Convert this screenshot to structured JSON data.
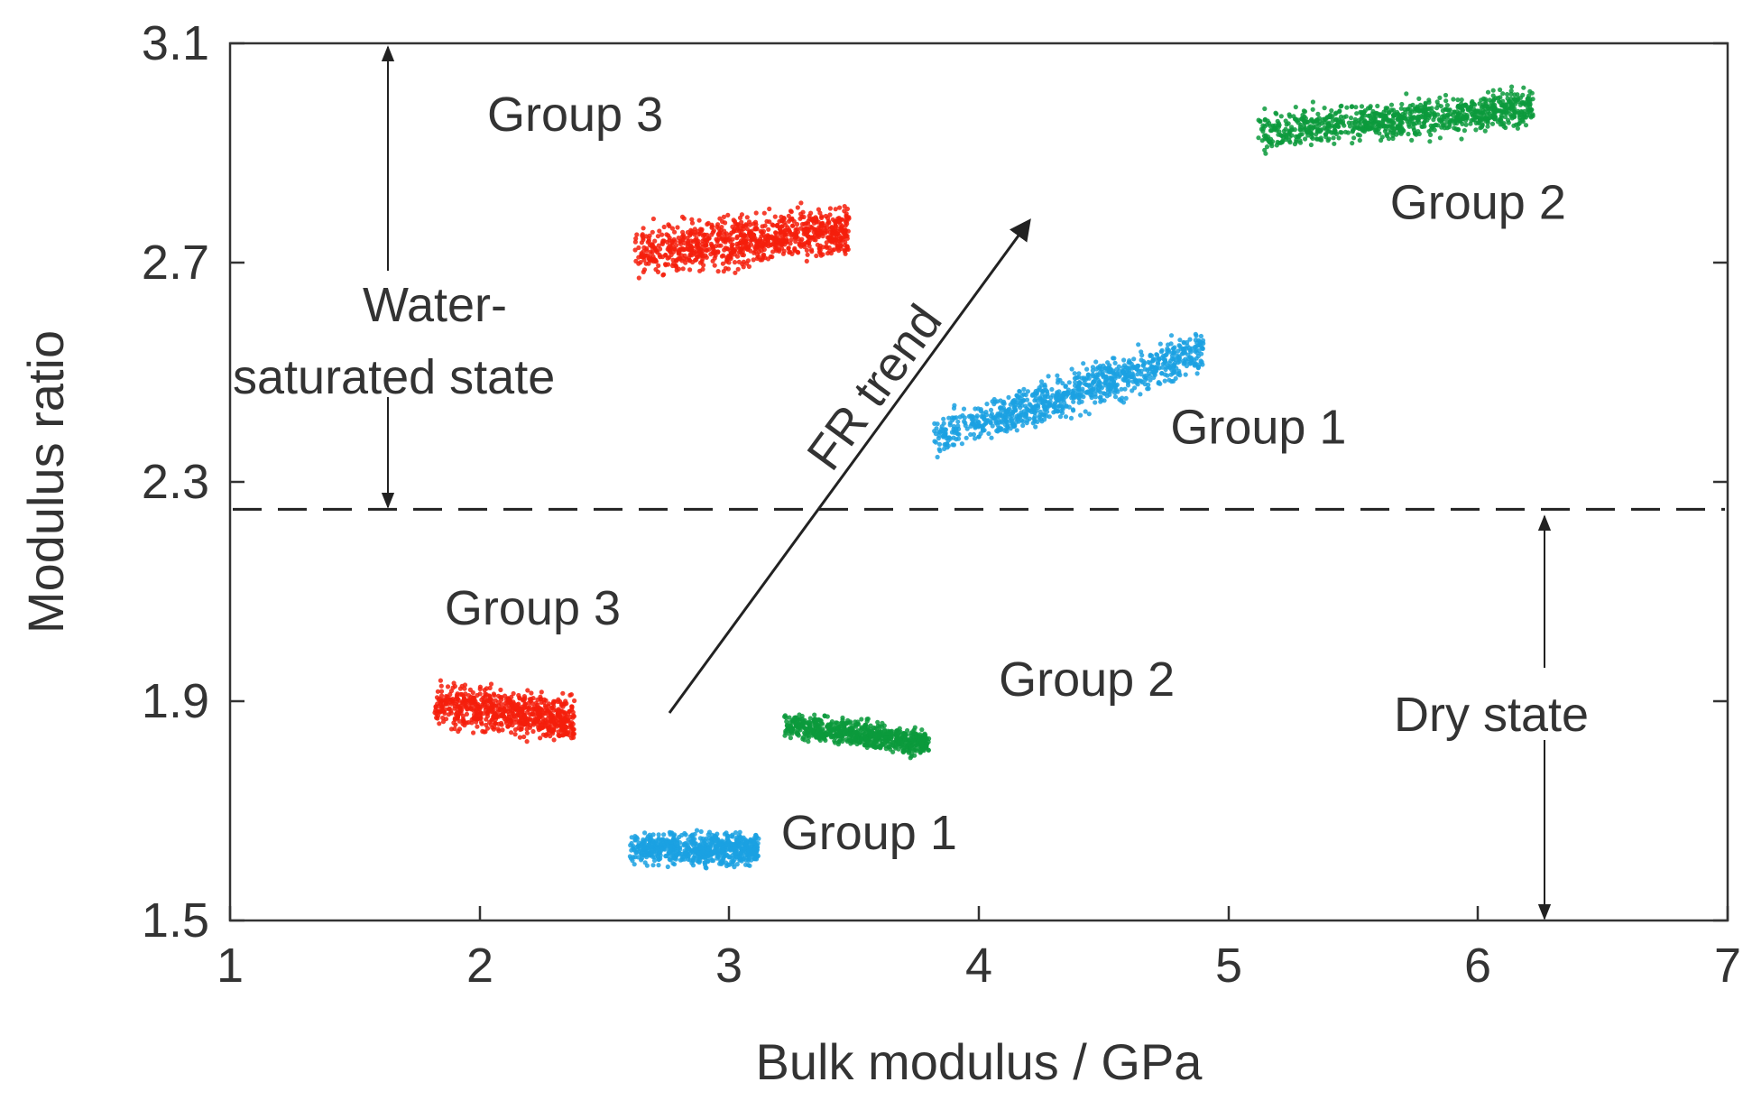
{
  "chart_data": {
    "type": "scatter",
    "title": "",
    "xlabel": "Bulk modulus / GPa",
    "ylabel": "Modulus ratio",
    "xlim": [
      1,
      7
    ],
    "ylim": [
      1.5,
      3.1
    ],
    "x_ticks": [
      "1",
      "2",
      "3",
      "4",
      "5",
      "6",
      "7"
    ],
    "y_ticks": [
      "1.5",
      "1.9",
      "2.3",
      "2.7",
      "3.1"
    ],
    "grid": false,
    "threshold_line": {
      "y": 2.25,
      "style": "dashed"
    },
    "clusters": [
      {
        "name": "Group 1",
        "state": "Dry state",
        "color": "#1ba1e2",
        "x_range": [
          2.6,
          3.12
        ],
        "y_center": 1.63,
        "y_spread": 0.025,
        "y_slope": 0.0,
        "count": 700
      },
      {
        "name": "Group 2",
        "state": "Dry state",
        "color": "#0c9a3c",
        "x_range": [
          3.22,
          3.8
        ],
        "y_center": 1.84,
        "y_spread": 0.022,
        "y_slope": -0.06,
        "count": 700
      },
      {
        "name": "Group 3",
        "state": "Dry state",
        "color": "#f41e0c",
        "x_range": [
          1.82,
          2.38
        ],
        "y_center": 1.88,
        "y_spread": 0.035,
        "y_slope": -0.05,
        "count": 700
      },
      {
        "name": "Group 1",
        "state": "Water-saturated state",
        "color": "#1ba1e2",
        "x_range": [
          3.82,
          4.9
        ],
        "y_center": 2.46,
        "y_spread": 0.035,
        "y_slope": 0.15,
        "count": 900
      },
      {
        "name": "Group 2",
        "state": "Water-saturated state",
        "color": "#0c9a3c",
        "x_range": [
          5.12,
          6.22
        ],
        "y_center": 2.96,
        "y_spread": 0.03,
        "y_slope": 0.04,
        "count": 900
      },
      {
        "name": "Group 3",
        "state": "Water-saturated state",
        "color": "#f41e0c",
        "x_range": [
          2.62,
          3.48
        ],
        "y_center": 2.74,
        "y_spread": 0.04,
        "y_slope": 0.05,
        "count": 900
      }
    ],
    "cluster_labels": [
      {
        "text": "Group 3",
        "x": 2.03,
        "y": 2.94
      },
      {
        "text": "Group 2",
        "x": 6.0,
        "y": 2.78
      },
      {
        "text": "Group 1",
        "x": 5.12,
        "y": 2.37
      },
      {
        "text": "Group 3",
        "x": 1.86,
        "y": 2.04
      },
      {
        "text": "Group 2",
        "x": 4.08,
        "y": 1.91
      },
      {
        "text": "Group 1",
        "x": 3.56,
        "y": 1.63
      }
    ],
    "annotations": {
      "water_state_line1": "Water-",
      "water_state_line2": "saturated state",
      "dry_state": "Dry state",
      "trend_label": "FR trend"
    }
  }
}
